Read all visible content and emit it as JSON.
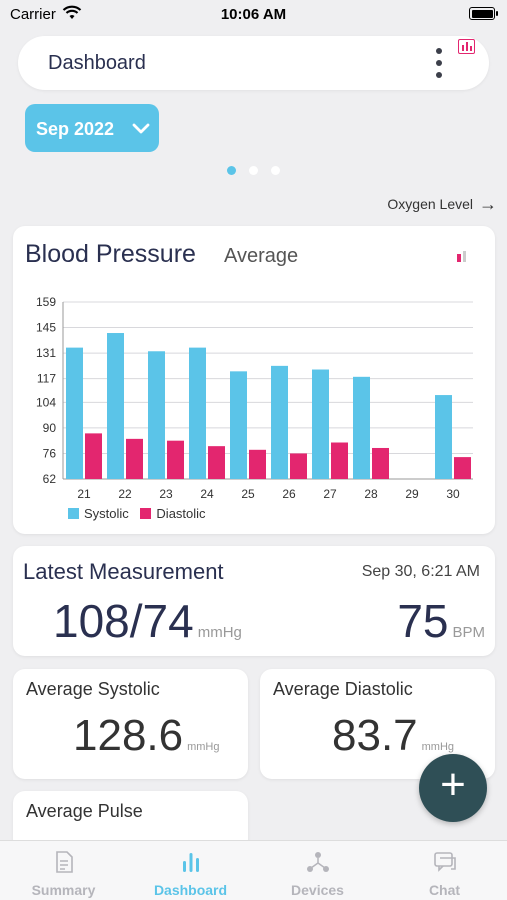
{
  "status_bar": {
    "carrier": "Carrier",
    "time": "10:06 AM"
  },
  "header": {
    "title": "Dashboard"
  },
  "month_selector": {
    "label": "Sep 2022"
  },
  "pager": {
    "count": 3,
    "active": 0
  },
  "next_link": {
    "label": "Oxygen Level"
  },
  "bp_card": {
    "title": "Blood Pressure",
    "subtitle": "Average"
  },
  "chart_data": {
    "type": "bar",
    "categories": [
      "21",
      "22",
      "23",
      "24",
      "25",
      "26",
      "27",
      "28",
      "29",
      "30"
    ],
    "series": [
      {
        "name": "Systolic",
        "values": [
          134,
          142,
          132,
          134,
          121,
          124,
          122,
          118,
          null,
          108
        ],
        "color": "#5bc4e8"
      },
      {
        "name": "Diastolic",
        "values": [
          87,
          84,
          83,
          80,
          78,
          76,
          82,
          79,
          null,
          74
        ],
        "color": "#e3266f"
      }
    ],
    "yticks": [
      62,
      76,
      90,
      104,
      117,
      131,
      145,
      159
    ],
    "ylim": [
      62,
      159
    ],
    "grid": true,
    "legend": "bottom-left"
  },
  "latest": {
    "title": "Latest Measurement",
    "date": "Sep 30, 6:21 AM",
    "bp_value": "108/74",
    "bp_unit": "mmHg",
    "pulse_value": "75",
    "pulse_unit": "BPM"
  },
  "avg_systolic": {
    "title": "Average Systolic",
    "value": "128.6",
    "unit": "mmHg"
  },
  "avg_diastolic": {
    "title": "Average Diastolic",
    "value": "83.7",
    "unit": "mmHg"
  },
  "avg_pulse": {
    "title": "Average Pulse"
  },
  "tabs": [
    {
      "label": "Summary",
      "icon": "document-icon",
      "active": false
    },
    {
      "label": "Dashboard",
      "icon": "bar-chart-icon",
      "active": true
    },
    {
      "label": "Devices",
      "icon": "devices-icon",
      "active": false
    },
    {
      "label": "Chat",
      "icon": "chat-icon",
      "active": false
    }
  ],
  "colors": {
    "accent": "#5bc4e8",
    "systolic": "#5bc4e8",
    "diastolic": "#e3266f",
    "fab": "#2f4f56"
  }
}
